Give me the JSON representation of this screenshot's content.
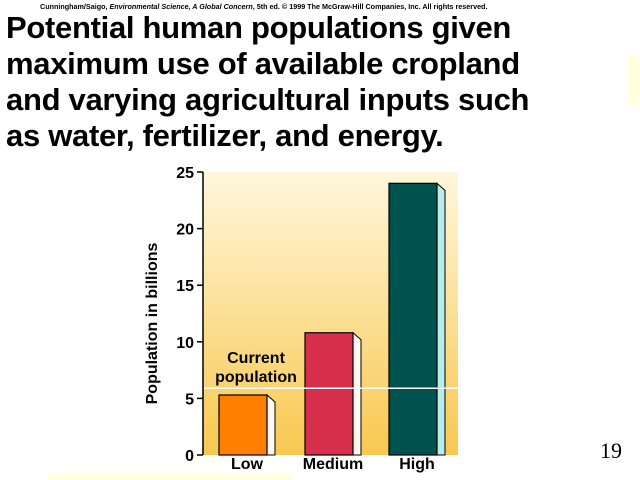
{
  "credit": {
    "authors": "Cunningham/Saigo, ",
    "book": "Environmental Science, A Global Concern",
    "rest": ", 5th ed. © 1999 The McGraw-Hill Companies, Inc. All rights reserved."
  },
  "title_lines": [
    "Potential human populations given",
    "maximum use of available cropland",
    "and varying agricultural inputs such",
    "as water, fertilizer, and energy."
  ],
  "page_number": "19",
  "colors": {
    "bg_top": "#fff7dc",
    "bg_bottom": "#f8c850",
    "low": "#ff7f00",
    "medium": "#d8304c",
    "high": "#00524e",
    "high_side": "#b8ece8",
    "current_line": "#ffffff"
  },
  "chart_data": {
    "type": "bar",
    "categories": [
      "Low",
      "Medium",
      "High"
    ],
    "values": [
      5.3,
      10.8,
      24
    ],
    "ylabel": "Population in billions",
    "ylim": [
      0,
      25
    ],
    "yticks": [
      0,
      5,
      10,
      15,
      20,
      25
    ],
    "annotation": {
      "text_lines": [
        "Current",
        "population"
      ],
      "value": 5.9
    }
  }
}
